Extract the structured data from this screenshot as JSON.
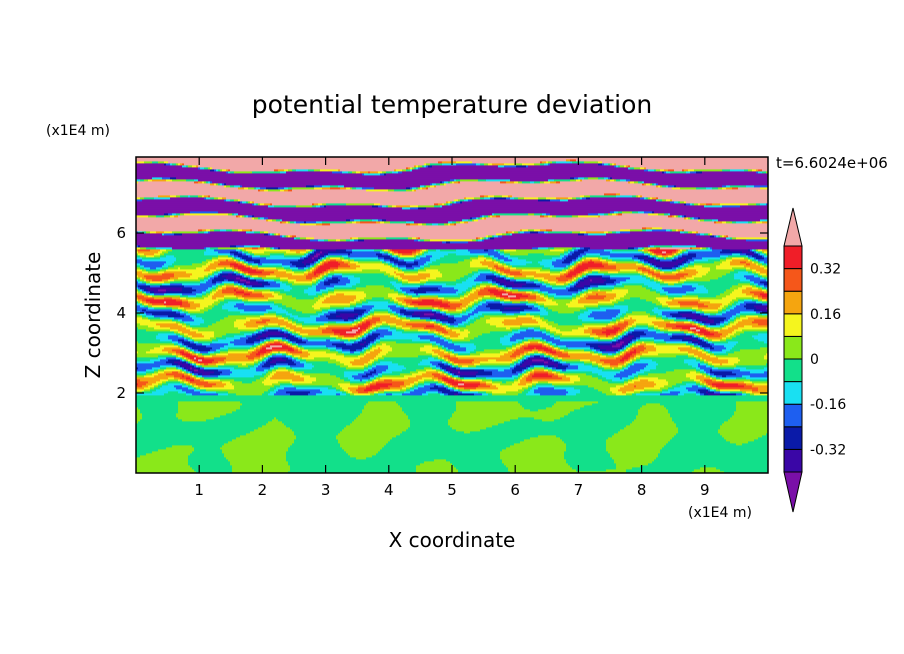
{
  "chart_data": {
    "type": "heatmap",
    "title": "potential temperature deviation",
    "xlabel": "X coordinate",
    "ylabel": "Z coordinate",
    "x_unit": "(x1E4 m)",
    "y_unit": "(x1E4 m)",
    "time_label": "t=6.6024e+06",
    "xlim": [
      0,
      10
    ],
    "ylim": [
      0,
      7.9
    ],
    "x_ticks": [
      1,
      2,
      3,
      4,
      5,
      6,
      7,
      8,
      9
    ],
    "y_ticks": [
      2,
      4,
      6
    ],
    "grid": false,
    "colorbar": {
      "placement": "right",
      "levels": [
        -0.4,
        -0.32,
        -0.24,
        -0.16,
        -0.08,
        0,
        0.08,
        0.16,
        0.24,
        0.32,
        0.4
      ],
      "tick_labels": [
        "0.32",
        "0.16",
        "0",
        "-0.16",
        "-0.32"
      ],
      "tick_values": [
        0.32,
        0.16,
        0,
        -0.16,
        -0.32
      ],
      "colors": [
        "#7a0fa8",
        "#3a06a6",
        "#0a1aa8",
        "#1e5ff0",
        "#19e0f2",
        "#12e08a",
        "#8ae81a",
        "#f5f51e",
        "#f5a50f",
        "#f5571a",
        "#f01e28",
        "#f2a8a8"
      ],
      "extend": "both"
    },
    "bands": [
      {
        "z_from": 0,
        "z_to": 1.95,
        "value_range": [
          0,
          0.08
        ],
        "pattern": "smooth cells"
      },
      {
        "z_from": 1.95,
        "z_to": 5.6,
        "value_range": [
          -0.4,
          0.4
        ],
        "pattern": "wavy layered"
      },
      {
        "z_from": 5.6,
        "z_to": 7.9,
        "value_range": [
          -0.48,
          0.48
        ],
        "pattern": "alternating strong layers"
      }
    ]
  }
}
